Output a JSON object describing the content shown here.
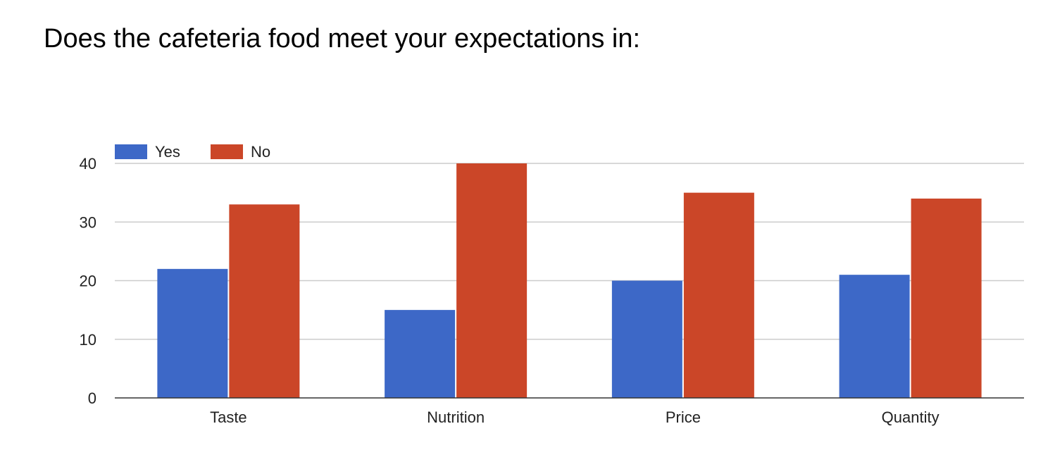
{
  "chart_data": {
    "type": "bar",
    "title": "Does the cafeteria food meet your expectations in:",
    "xlabel": "",
    "ylabel": "",
    "categories": [
      "Taste",
      "Nutrition",
      "Price",
      "Quantity"
    ],
    "series": [
      {
        "name": "Yes",
        "color": "#3d68c7",
        "values": [
          22,
          15,
          20,
          21
        ]
      },
      {
        "name": "No",
        "color": "#cb4628",
        "values": [
          33,
          40,
          35,
          34
        ]
      }
    ],
    "ylim": [
      0,
      40
    ],
    "yticks": [
      0,
      10,
      20,
      30,
      40
    ],
    "grid": true,
    "legend": "top-left"
  }
}
